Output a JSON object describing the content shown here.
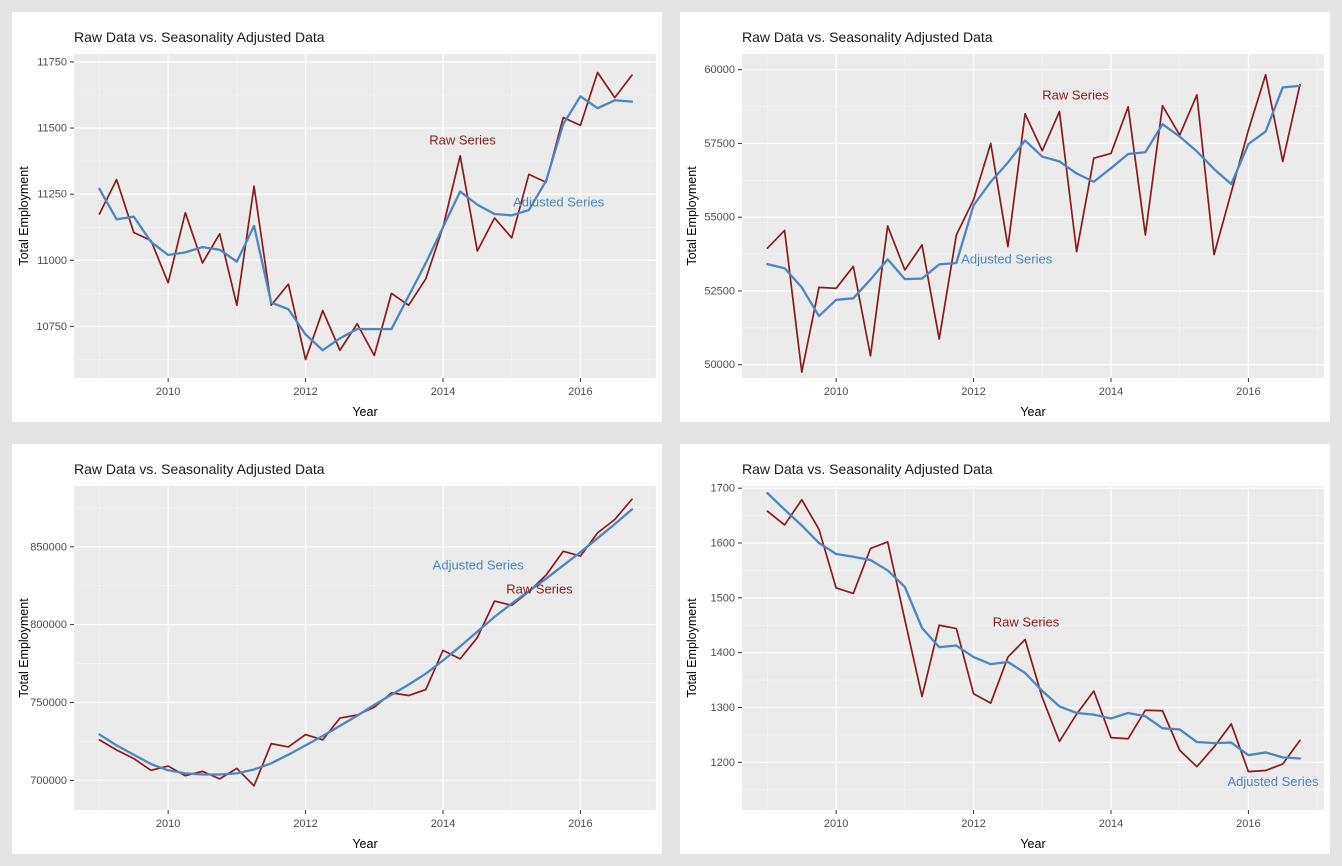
{
  "page": {
    "background": "#E4E4E4",
    "card_background": "#FFFFFF"
  },
  "shared": {
    "title": "Raw Data vs. Seasonality Adjusted Data",
    "xlabel": "Year",
    "ylabel": "Total Employment",
    "raw_label": "Raw Series",
    "adjusted_label": "Adjusted Series",
    "colors": {
      "raw": "#8B1A1A",
      "adjusted": "#4E87BD",
      "panel": "#EBEBEB",
      "grid_major": "#FFFFFF",
      "grid_minor": "#F5F5F5",
      "axis_text": "#4D4D4D",
      "tick_mark": "#333333"
    },
    "x_start": 2009,
    "x_step": 0.25,
    "xlim": [
      2008.63,
      2017.1
    ],
    "x_major_ticks": [
      2010,
      2012,
      2014,
      2016
    ],
    "x_minor_ticks": [
      2009,
      2011,
      2013,
      2015,
      2017
    ]
  },
  "chart_data": [
    {
      "position": "top-left",
      "type": "line",
      "ylim": [
        10555,
        11780
      ],
      "y_ticks": [
        10750,
        11000,
        11250,
        11500,
        11750
      ],
      "y_minor_ticks": [
        10625,
        10875,
        11125,
        11375,
        11625
      ],
      "series": [
        {
          "name_ref": "raw_label",
          "color_ref": "raw",
          "width": 1.7,
          "values": [
            11175,
            11305,
            11105,
            11075,
            10915,
            11180,
            10990,
            11100,
            10830,
            11280,
            10830,
            10910,
            10625,
            10810,
            10660,
            10760,
            10640,
            10875,
            10830,
            10930,
            11125,
            11395,
            11035,
            11160,
            11085,
            11325,
            11295,
            11540,
            11510,
            11710,
            11615,
            11700
          ]
        },
        {
          "name_ref": "adjusted_label",
          "color_ref": "adjusted",
          "width": 2.3,
          "values": [
            11270,
            11155,
            11165,
            11070,
            11020,
            11030,
            11050,
            11040,
            10995,
            11130,
            10840,
            10815,
            10720,
            10660,
            10705,
            10740,
            10740,
            10740,
            10865,
            10990,
            11125,
            11260,
            11210,
            11175,
            11170,
            11190,
            11300,
            11515,
            11620,
            11575,
            11605,
            11600
          ]
        }
      ],
      "annotations": [
        {
          "label_ref": "raw_label",
          "color_ref": "raw",
          "x": 2013.8,
          "y": 11438,
          "anchor": "start"
        },
        {
          "label_ref": "adjusted_label",
          "color_ref": "adjusted",
          "x": 2015.02,
          "y": 11203,
          "anchor": "start"
        }
      ]
    },
    {
      "position": "top-right",
      "type": "line",
      "ylim": [
        49550,
        60530
      ],
      "y_ticks": [
        50000,
        52500,
        55000,
        57500,
        60000
      ],
      "y_minor_ticks": [
        51250,
        53750,
        56250,
        58750
      ],
      "series": [
        {
          "name_ref": "raw_label",
          "color_ref": "raw",
          "width": 1.7,
          "values": [
            53950,
            54550,
            49750,
            52620,
            52590,
            53330,
            50300,
            54700,
            53210,
            54060,
            50870,
            54400,
            55590,
            57500,
            54000,
            58500,
            57250,
            58580,
            53830,
            57000,
            57160,
            58740,
            54400,
            58780,
            57780,
            59145,
            53730,
            55840,
            57950,
            59825,
            56890,
            59490
          ]
        },
        {
          "name_ref": "adjusted_label",
          "color_ref": "adjusted",
          "width": 2.3,
          "values": [
            53410,
            53270,
            52620,
            51650,
            52200,
            52250,
            52890,
            53570,
            52900,
            52920,
            53400,
            53450,
            55400,
            56200,
            56850,
            57600,
            57050,
            56890,
            56480,
            56200,
            56660,
            57140,
            57200,
            58150,
            57730,
            57230,
            56630,
            56120,
            57480,
            57900,
            59400,
            59450
          ]
        }
      ],
      "annotations": [
        {
          "label_ref": "raw_label",
          "color_ref": "raw",
          "x": 2013.0,
          "y": 58980,
          "anchor": "start"
        },
        {
          "label_ref": "adjusted_label",
          "color_ref": "adjusted",
          "x": 2011.82,
          "y": 53430,
          "anchor": "start"
        }
      ]
    },
    {
      "position": "bottom-left",
      "type": "line",
      "ylim": [
        681000,
        889000
      ],
      "y_ticks": [
        700000,
        750000,
        800000,
        850000
      ],
      "y_minor_ticks": [
        725000,
        775000,
        825000,
        875000
      ],
      "series": [
        {
          "name_ref": "raw_label",
          "color_ref": "raw",
          "width": 1.7,
          "values": [
            726000,
            719500,
            714000,
            706500,
            709200,
            703000,
            705800,
            701000,
            707700,
            696500,
            723600,
            721500,
            729400,
            726000,
            740000,
            742000,
            747000,
            756200,
            754500,
            758300,
            783500,
            778000,
            791700,
            815100,
            812400,
            821100,
            831800,
            847100,
            844000,
            858900,
            867500,
            880500
          ]
        },
        {
          "name_ref": "adjusted_label",
          "color_ref": "adjusted",
          "width": 2.3,
          "values": [
            729500,
            722500,
            716500,
            710500,
            706500,
            704500,
            703800,
            703800,
            704500,
            707000,
            711000,
            716500,
            722500,
            728500,
            735000,
            741500,
            748500,
            755000,
            761500,
            768500,
            777000,
            786000,
            795500,
            805000,
            813500,
            821500,
            829500,
            838000,
            846500,
            855500,
            864500,
            874000
          ]
        }
      ],
      "annotations": [
        {
          "label_ref": "adjusted_label",
          "color_ref": "adjusted",
          "x": 2013.85,
          "y": 835500,
          "anchor": "start"
        },
        {
          "label_ref": "raw_label",
          "color_ref": "raw",
          "x": 2014.92,
          "y": 820000,
          "anchor": "start"
        }
      ]
    },
    {
      "position": "bottom-right",
      "type": "line",
      "ylim": [
        1113,
        1704
      ],
      "y_ticks": [
        1200,
        1300,
        1400,
        1500,
        1600,
        1700
      ],
      "y_minor_ticks": [
        1150,
        1250,
        1350,
        1450,
        1550,
        1650
      ],
      "series": [
        {
          "name_ref": "raw_label",
          "color_ref": "raw",
          "width": 1.7,
          "values": [
            1658,
            1633,
            1679,
            1625,
            1518,
            1508,
            1590,
            1602,
            1460,
            1320,
            1450,
            1444,
            1325,
            1308,
            1392,
            1424,
            1318,
            1238,
            1288,
            1330,
            1245,
            1243,
            1295,
            1294,
            1222,
            1192,
            1228,
            1270,
            1183,
            1185,
            1197,
            1240
          ]
        },
        {
          "name_ref": "adjusted_label",
          "color_ref": "adjusted",
          "width": 2.3,
          "values": [
            1691,
            1661,
            1632,
            1600,
            1580,
            1575,
            1569,
            1550,
            1520,
            1445,
            1410,
            1413,
            1392,
            1379,
            1383,
            1363,
            1330,
            1302,
            1290,
            1287,
            1280,
            1290,
            1284,
            1262,
            1260,
            1237,
            1235,
            1236,
            1213,
            1218,
            1209,
            1207
          ]
        }
      ],
      "annotations": [
        {
          "label_ref": "raw_label",
          "color_ref": "raw",
          "x": 2012.28,
          "y": 1448,
          "anchor": "start"
        },
        {
          "label_ref": "adjusted_label",
          "color_ref": "adjusted",
          "x": 2017.02,
          "y": 1157,
          "anchor": "end"
        }
      ]
    }
  ]
}
